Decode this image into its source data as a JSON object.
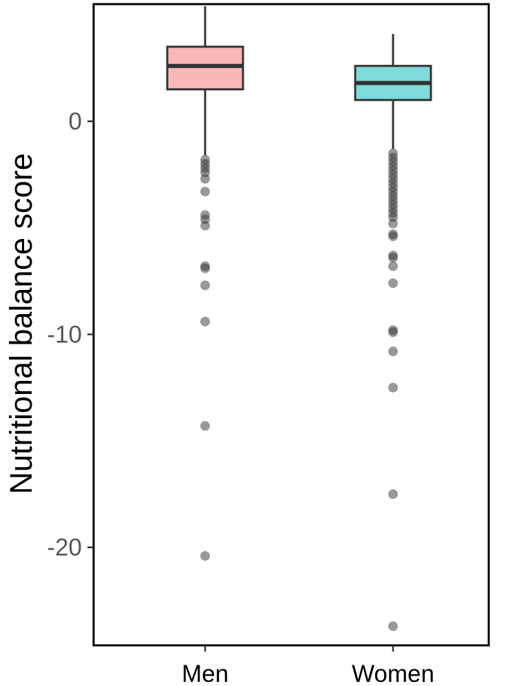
{
  "chart_data": {
    "type": "box",
    "ylabel": "Nutritional balance score",
    "yticks": [
      0,
      -10,
      -20
    ],
    "ytick_labels": [
      "0",
      "-10",
      "-20"
    ],
    "ylim": [
      -24.6,
      5.5
    ],
    "categories": [
      "Men",
      "Women"
    ],
    "series": [
      {
        "category": "Men",
        "fill": "#F8B8B8",
        "whisker_low": -1.6,
        "q1": 1.5,
        "median": 2.6,
        "q3": 3.5,
        "whisker_high": 5.4,
        "outliers": [
          -1.8,
          -2.0,
          -2.2,
          -2.4,
          -2.7,
          -3.3,
          -4.4,
          -4.6,
          -4.9,
          -6.8,
          -6.9,
          -7.7,
          -9.4,
          -14.3,
          -20.4
        ]
      },
      {
        "category": "Women",
        "fill": "#7FDADA",
        "whisker_low": -1.3,
        "q1": 1.0,
        "median": 1.8,
        "q3": 2.6,
        "whisker_high": 4.1,
        "outliers": [
          -1.5,
          -1.7,
          -1.9,
          -2.1,
          -2.3,
          -2.5,
          -2.7,
          -2.9,
          -3.1,
          -3.3,
          -3.5,
          -3.7,
          -3.9,
          -4.1,
          -4.3,
          -4.5,
          -4.8,
          -5.3,
          -5.4,
          -6.3,
          -6.4,
          -6.8,
          -7.6,
          -9.8,
          -9.9,
          -10.8,
          -12.5,
          -17.5,
          -23.7
        ]
      }
    ],
    "outlier_color": "#333333",
    "grid": false
  }
}
